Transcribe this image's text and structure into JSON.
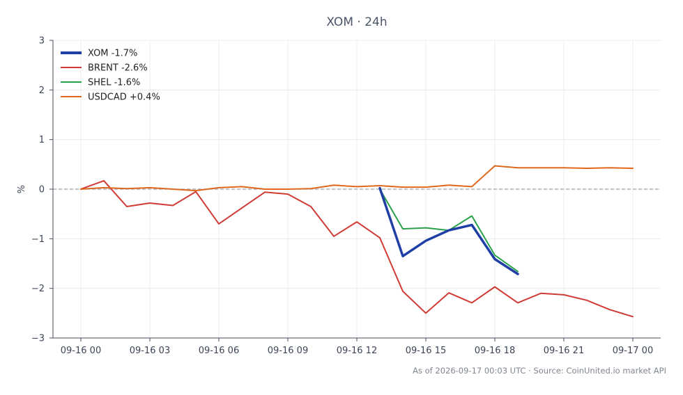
{
  "chart_data": {
    "type": "line",
    "title": "XOM · 24h",
    "ylabel": "%",
    "xlabel": "",
    "ylim": [
      -3,
      3
    ],
    "yticks": [
      3,
      2,
      1,
      0,
      -1,
      -2,
      -3
    ],
    "ytick_labels": [
      "3",
      "2",
      "1",
      "0",
      "−1",
      "−2",
      "−3"
    ],
    "xlim": [
      0,
      24.6
    ],
    "xticks": [
      {
        "x": 0,
        "label": "09-16 00"
      },
      {
        "x": 3,
        "label": "09-16 03"
      },
      {
        "x": 6,
        "label": "09-16 06"
      },
      {
        "x": 9,
        "label": "09-16 09"
      },
      {
        "x": 12,
        "label": "09-16 12"
      },
      {
        "x": 15,
        "label": "09-16 15"
      },
      {
        "x": 18,
        "label": "09-16 18"
      },
      {
        "x": 21,
        "label": "09-16 21"
      },
      {
        "x": 24,
        "label": "09-17 00"
      }
    ],
    "grid": true,
    "zero_line": true,
    "legend_position": "top-left",
    "series": [
      {
        "name": "XOM -1.7%",
        "color": "#1f3fa6",
        "width": 3.5,
        "x": [
          13,
          14,
          15,
          16,
          17,
          18,
          19
        ],
        "y": [
          0.02,
          -1.35,
          -1.04,
          -0.83,
          -0.72,
          -1.41,
          -1.71
        ]
      },
      {
        "name": "BRENT -2.6%",
        "color": "#d03a34",
        "width": 2,
        "x": [
          0,
          1,
          2,
          3,
          4,
          5,
          6,
          8,
          9,
          10,
          11,
          12,
          13,
          14,
          15,
          16,
          17,
          18,
          19,
          20,
          21,
          22,
          23,
          24
        ],
        "y": [
          0.0,
          0.17,
          -0.35,
          -0.28,
          -0.33,
          -0.05,
          -0.7,
          -0.06,
          -0.1,
          -0.35,
          -0.95,
          -0.66,
          -0.98,
          -2.06,
          -2.5,
          -2.09,
          -2.29,
          -1.97,
          -2.29,
          -2.1,
          -2.13,
          -2.24,
          -2.43,
          -2.57
        ]
      },
      {
        "name": "SHEL -1.6%",
        "color": "#2aa04a",
        "width": 2,
        "x": [
          13,
          14,
          15,
          16,
          17,
          18,
          19
        ],
        "y": [
          0.0,
          -0.8,
          -0.78,
          -0.83,
          -0.54,
          -1.33,
          -1.66
        ]
      },
      {
        "name": "USDCAD +0.4%",
        "color": "#e0681c",
        "width": 2,
        "x": [
          0,
          1,
          2,
          3,
          4,
          5,
          6,
          7,
          8,
          9,
          10,
          11,
          12,
          13,
          14,
          15,
          16,
          17,
          18,
          19,
          20,
          21,
          22,
          23,
          24
        ],
        "y": [
          0.0,
          0.03,
          0.01,
          0.03,
          0.0,
          -0.03,
          0.03,
          0.05,
          0.0,
          0.0,
          0.01,
          0.08,
          0.05,
          0.07,
          0.04,
          0.04,
          0.08,
          0.05,
          0.47,
          0.43,
          0.43,
          0.43,
          0.42,
          0.43,
          0.42
        ]
      }
    ],
    "caption": "As of 2026-09-17 00:03 UTC · Source: CoinUnited.io market API"
  }
}
